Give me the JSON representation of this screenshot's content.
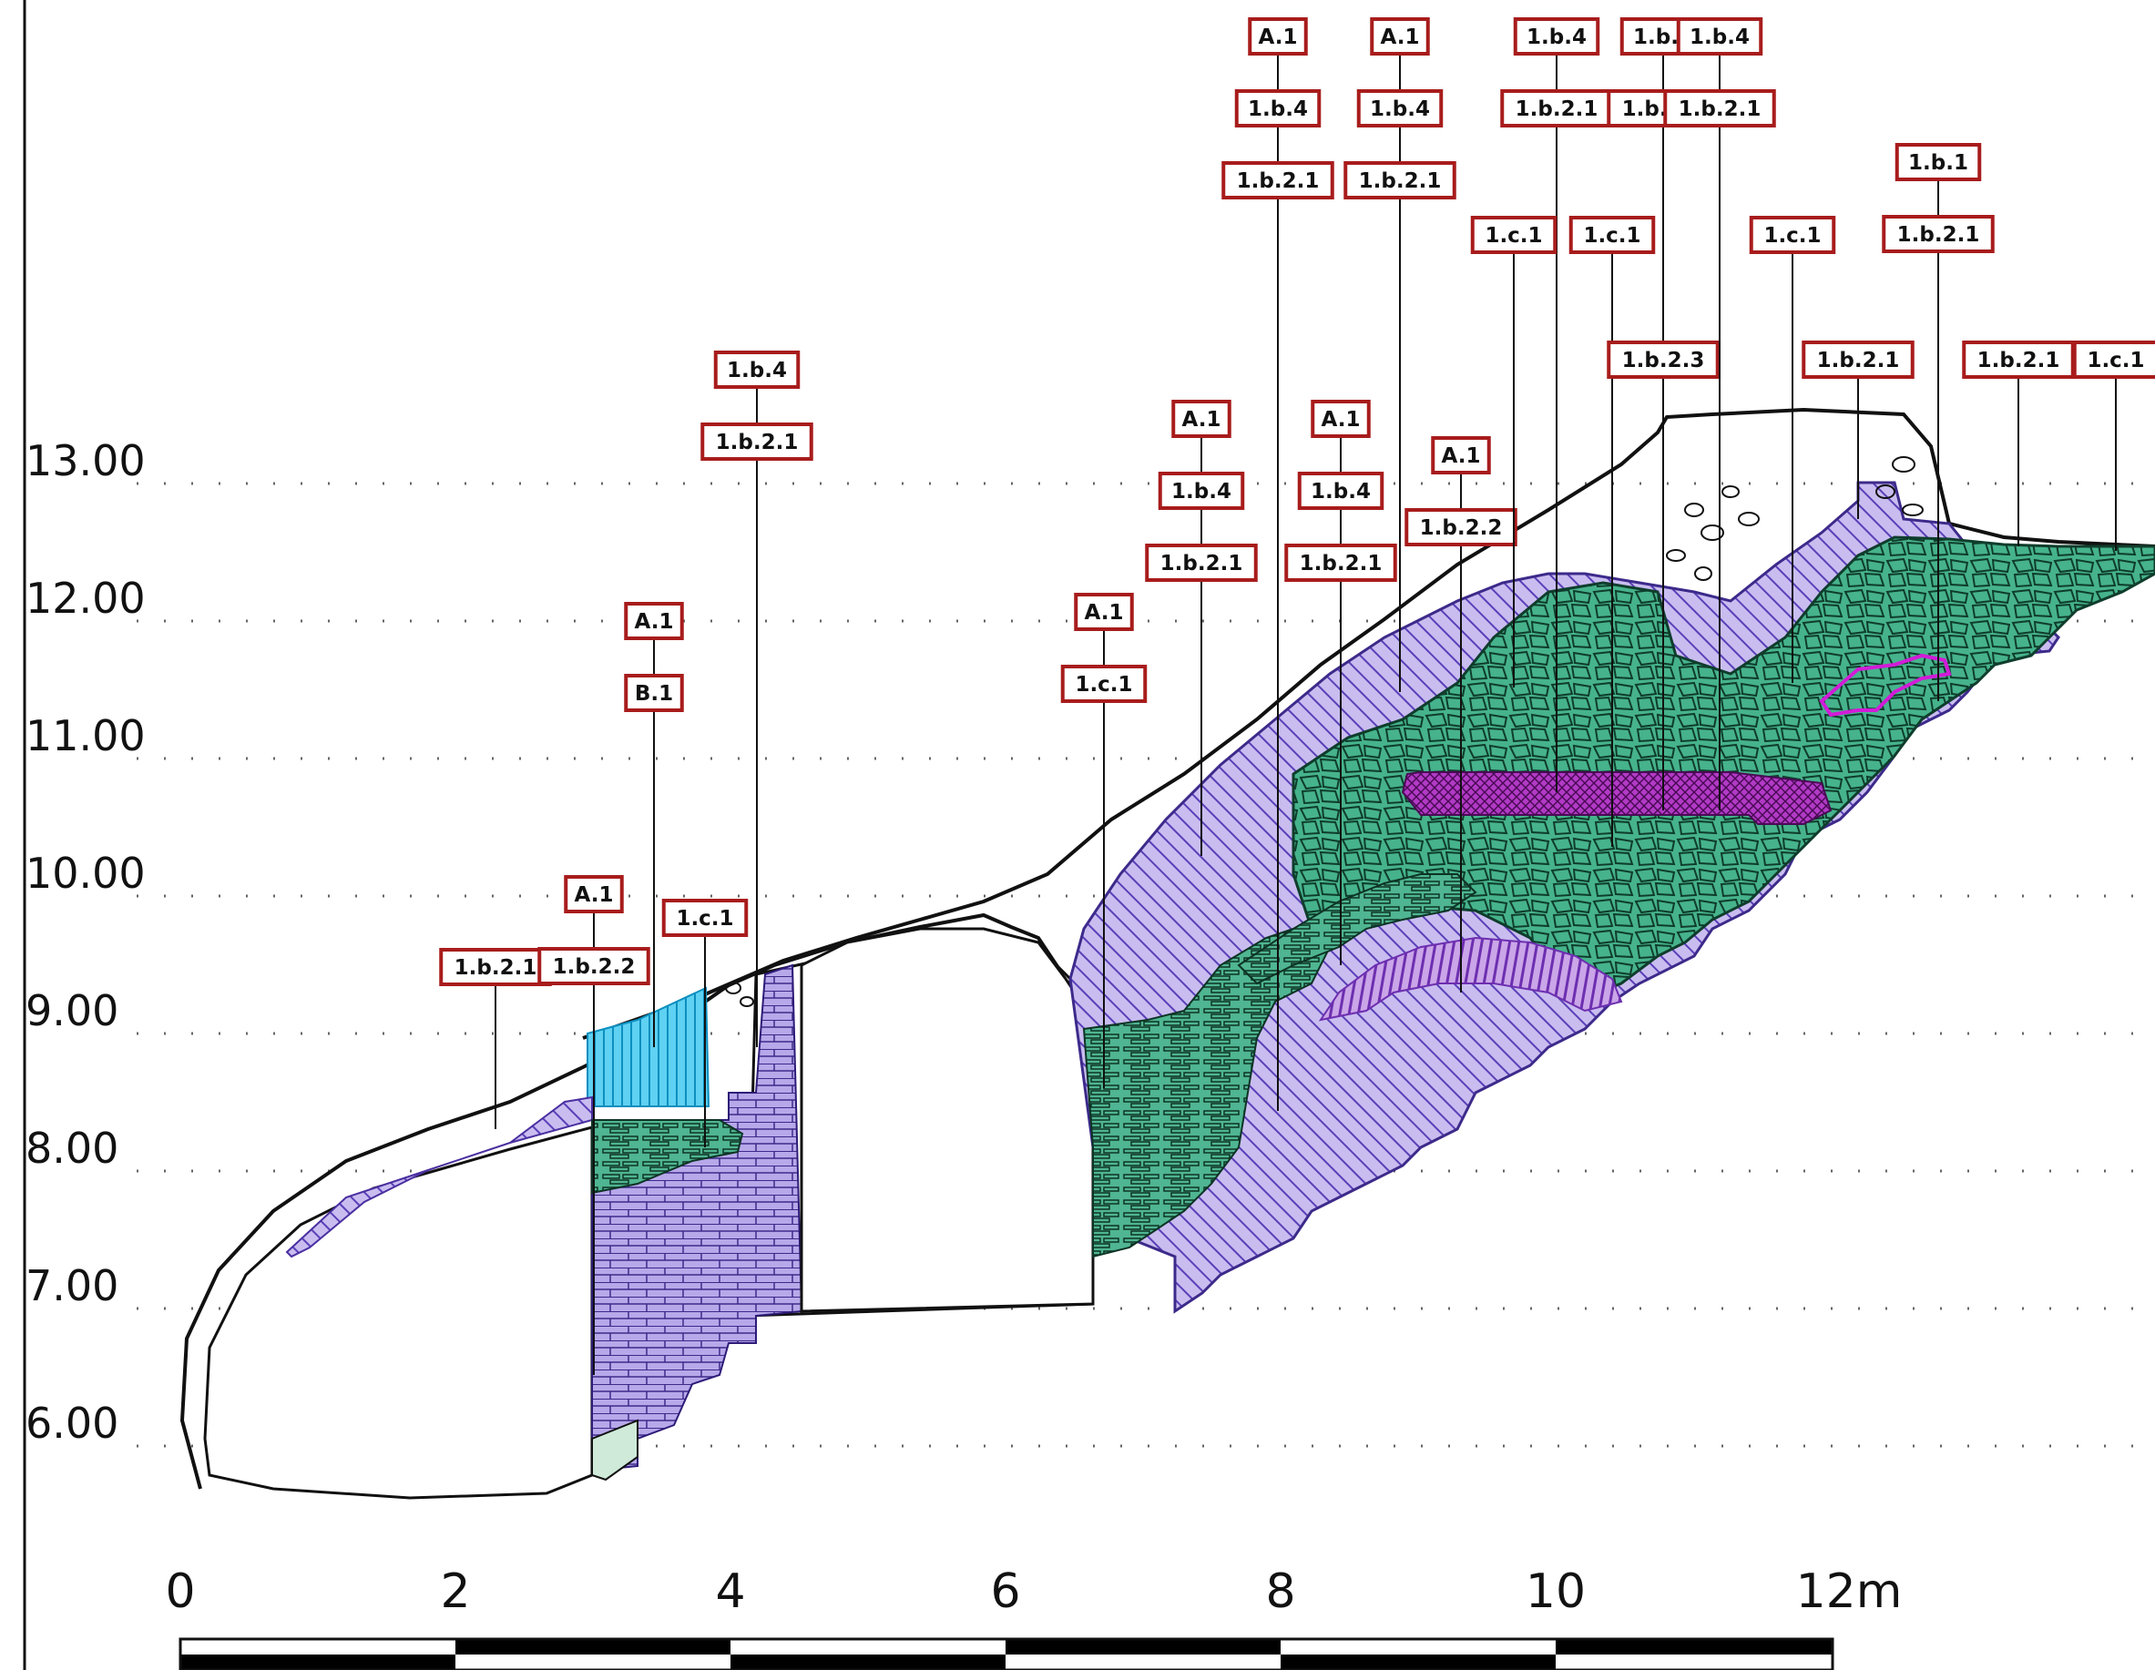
{
  "elevations": [
    "13.00",
    "12.00",
    "11.00",
    "10.00",
    "9.00",
    "8.00",
    "7.00",
    "6.00"
  ],
  "scale": {
    "ticks": [
      "0",
      "2",
      "4",
      "6",
      "8",
      "10",
      "12m"
    ]
  },
  "label_stacks": [
    [
      "1.b.2.1"
    ],
    [
      "A.1",
      "1.b.2.2"
    ],
    [
      "A.1",
      "B.1"
    ],
    [
      "1.c.1"
    ],
    [
      "1.b.4",
      "1.b.2.1"
    ],
    [
      "A.1",
      "1.b.4",
      "1.b.2.1"
    ],
    [
      "A.1",
      "1.c.1"
    ],
    [
      "A.1",
      "1.b.4",
      "1.b.2.1"
    ],
    [
      "A.1",
      "1.b.4",
      "1.b.2.1"
    ],
    [
      "A.1",
      "1.b.4",
      "1.b.2.1"
    ],
    [
      "1.b.4",
      "1.b.2.1"
    ],
    [
      "A.1",
      "1.b.2.2"
    ],
    [
      "1.c.1"
    ],
    [
      "1.b.4",
      "1.b.2.1"
    ],
    [
      "1.c.1"
    ],
    [
      "1.b.2.3"
    ],
    [
      "1.b.4",
      "1.b.2.1"
    ],
    [
      "1.c.1"
    ],
    [
      "1.b.2.1"
    ],
    [
      "1.b.1",
      "1.b.2.1"
    ],
    [
      "1.b.2.1"
    ],
    [
      "1.c.1"
    ]
  ],
  "colors": {
    "tag_border": "#a81c1c",
    "masonry_green": "#3aa580",
    "fill_purple": "#6a4fc0",
    "fill_cyan": "#22bde6",
    "fill_magenta": "#9b1fb0"
  }
}
